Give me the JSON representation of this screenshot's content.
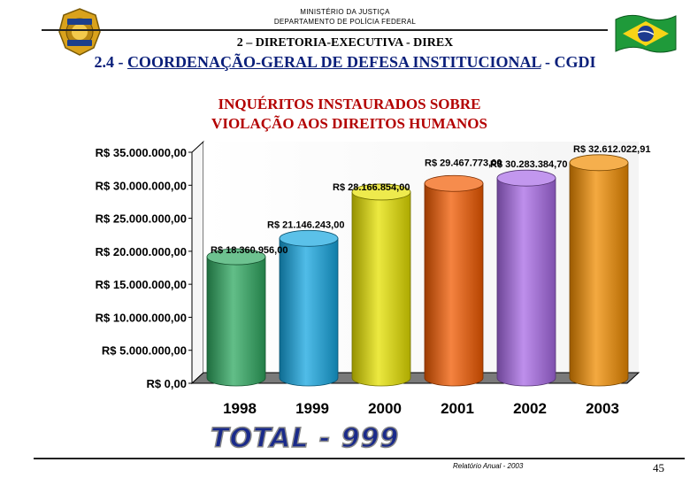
{
  "header": {
    "ministry_line1": "MINISTÉRIO DA JUSTIÇA",
    "ministry_line2": "DEPARTAMENTO DE POLÍCIA FEDERAL",
    "directorate": "2 – DIRETORIA-EXECUTIVA - DIREX",
    "coordination_code": "2.4",
    "coordination_name": "COORDENAÇÃO-GERAL DE DEFESA INSTITUCIONAL",
    "coordination_acronym": "CGDI",
    "badge_text": "POLÍCIA FEDERAL"
  },
  "chart_data": {
    "type": "bar",
    "title_line1": "INQUÉRITOS INSTAURADOS SOBRE",
    "title_line2": "VIOLAÇÃO AOS DIREITOS HUMANOS",
    "categories": [
      "1998",
      "1999",
      "2000",
      "2001",
      "2002",
      "2003"
    ],
    "values": [
      18360956.0,
      21146243.0,
      28166854.0,
      29467773.0,
      30283384.7,
      32612022.91
    ],
    "data_labels": [
      "R$ 18.360.956,00",
      "R$ 21.146.243,00",
      "R$ 28.166.854,00",
      "R$ 29.467.773,00",
      "R$ 30.283.384,70",
      "R$ 32.612.022,91"
    ],
    "y_ticks": [
      0,
      5000000,
      10000000,
      15000000,
      20000000,
      25000000,
      30000000,
      35000000
    ],
    "y_tick_labels": [
      "R$ 0,00",
      "R$ 5.000.000,00",
      "R$ 10.000.000,00",
      "R$ 15.000.000,00",
      "R$ 20.000.000,00",
      "R$ 25.000.000,00",
      "R$ 30.000.000,00",
      "R$ 35.000.000,00"
    ],
    "ylim": [
      0,
      35000000
    ],
    "grid": false,
    "bar_style": "3d-cylinder",
    "colors": [
      "#2ea860",
      "#15a6e0",
      "#e6e100",
      "#f25a00",
      "#a86ae6",
      "#f08c00"
    ]
  },
  "total_label": "TOTAL - 999",
  "footer": {
    "report": "Relatório Anual - 2003",
    "page_number": "45"
  }
}
